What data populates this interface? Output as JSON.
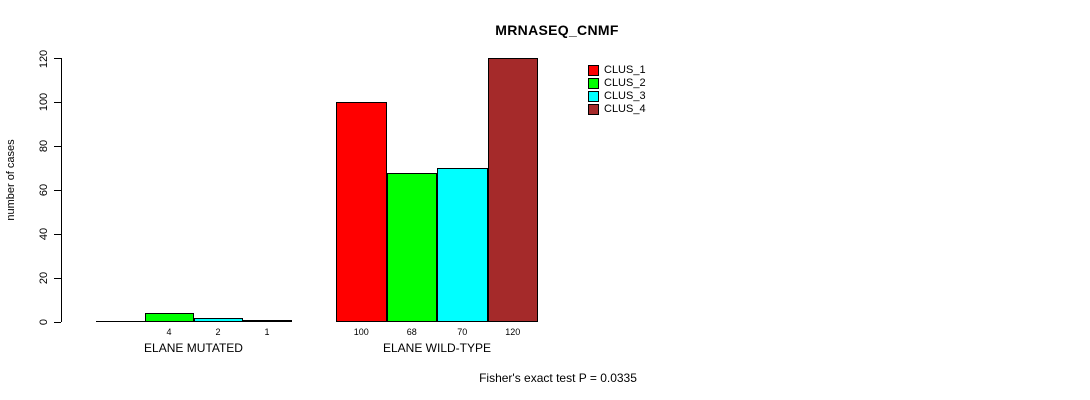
{
  "chart_data": {
    "type": "bar",
    "title": "MRNASEQ_CNMF",
    "ylabel": "number of cases",
    "xlabel": "",
    "ylim": [
      0,
      120
    ],
    "yticks": [
      0,
      20,
      40,
      60,
      80,
      100,
      120
    ],
    "grid": false,
    "legend_position": "top-right-inside",
    "legend": [
      {
        "label": "CLUS_1",
        "color": "#ff0000"
      },
      {
        "label": "CLUS_2",
        "color": "#00ff00"
      },
      {
        "label": "CLUS_3",
        "color": "#00ffff"
      },
      {
        "label": "CLUS_4",
        "color": "#a52a2a"
      }
    ],
    "series_colors": [
      "#ff0000",
      "#00ff00",
      "#00ffff",
      "#a52a2a"
    ],
    "groups": [
      {
        "label": "ELANE MUTATED",
        "values": [
          0,
          4,
          2,
          1
        ],
        "bar_labels": [
          "",
          "4",
          "2",
          "1"
        ]
      },
      {
        "label": "ELANE WILD-TYPE",
        "values": [
          100,
          68,
          70,
          120
        ],
        "bar_labels": [
          "100",
          "68",
          "70",
          "120"
        ]
      }
    ],
    "annotation": "Fisher's exact test P = 0.0335"
  }
}
